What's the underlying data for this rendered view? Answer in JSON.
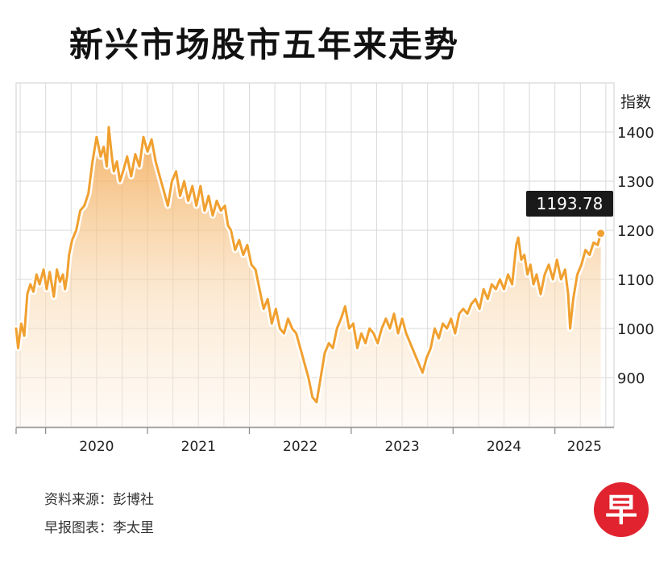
{
  "title": "新兴市场股市五年来走势",
  "chart_data": {
    "type": "line",
    "title": "新兴市场股市五年来走势",
    "ylabel": "指数",
    "xlabel": "",
    "ylim": [
      800,
      1500
    ],
    "yticks": [
      900,
      1000,
      1100,
      1200,
      1300,
      1400
    ],
    "xticks": [
      "2020",
      "2021",
      "2022",
      "2023",
      "2024",
      "2025"
    ],
    "x_range": [
      2019.71,
      2025.58
    ],
    "grid": true,
    "callout": "1193.78",
    "last_value": 1193.78,
    "series": [
      {
        "color": "#f0a030",
        "points": [
          [
            2019.71,
            1000
          ],
          [
            2019.73,
            960
          ],
          [
            2019.76,
            1010
          ],
          [
            2019.79,
            985
          ],
          [
            2019.82,
            1070
          ],
          [
            2019.85,
            1090
          ],
          [
            2019.88,
            1075
          ],
          [
            2019.91,
            1110
          ],
          [
            2019.94,
            1090
          ],
          [
            2019.98,
            1120
          ],
          [
            2020.01,
            1080
          ],
          [
            2020.04,
            1115
          ],
          [
            2020.08,
            1065
          ],
          [
            2020.11,
            1120
          ],
          [
            2020.14,
            1095
          ],
          [
            2020.17,
            1110
          ],
          [
            2020.19,
            1080
          ],
          [
            2020.21,
            1105
          ],
          [
            2020.23,
            1150
          ],
          [
            2020.26,
            1180
          ],
          [
            2020.3,
            1200
          ],
          [
            2020.34,
            1240
          ],
          [
            2020.38,
            1250
          ],
          [
            2020.42,
            1275
          ],
          [
            2020.46,
            1340
          ],
          [
            2020.5,
            1390
          ],
          [
            2020.54,
            1350
          ],
          [
            2020.57,
            1370
          ],
          [
            2020.6,
            1330
          ],
          [
            2020.62,
            1410
          ],
          [
            2020.65,
            1350
          ],
          [
            2020.67,
            1320
          ],
          [
            2020.7,
            1340
          ],
          [
            2020.73,
            1300
          ],
          [
            2020.76,
            1320
          ],
          [
            2020.8,
            1350
          ],
          [
            2020.84,
            1310
          ],
          [
            2020.88,
            1355
          ],
          [
            2020.92,
            1330
          ],
          [
            2020.96,
            1390
          ],
          [
            2021.0,
            1360
          ],
          [
            2021.04,
            1385
          ],
          [
            2021.08,
            1340
          ],
          [
            2021.12,
            1310
          ],
          [
            2021.16,
            1280
          ],
          [
            2021.2,
            1250
          ],
          [
            2021.24,
            1300
          ],
          [
            2021.28,
            1320
          ],
          [
            2021.32,
            1270
          ],
          [
            2021.36,
            1300
          ],
          [
            2021.4,
            1260
          ],
          [
            2021.44,
            1290
          ],
          [
            2021.48,
            1250
          ],
          [
            2021.52,
            1290
          ],
          [
            2021.56,
            1240
          ],
          [
            2021.6,
            1270
          ],
          [
            2021.64,
            1230
          ],
          [
            2021.68,
            1260
          ],
          [
            2021.72,
            1240
          ],
          [
            2021.76,
            1250
          ],
          [
            2021.79,
            1210
          ],
          [
            2021.82,
            1200
          ],
          [
            2021.86,
            1160
          ],
          [
            2021.9,
            1180
          ],
          [
            2021.94,
            1150
          ],
          [
            2021.98,
            1170
          ],
          [
            2022.02,
            1130
          ],
          [
            2022.06,
            1120
          ],
          [
            2022.1,
            1080
          ],
          [
            2022.14,
            1040
          ],
          [
            2022.18,
            1060
          ],
          [
            2022.22,
            1010
          ],
          [
            2022.26,
            1040
          ],
          [
            2022.3,
            1000
          ],
          [
            2022.34,
            990
          ],
          [
            2022.38,
            1020
          ],
          [
            2022.42,
            1000
          ],
          [
            2022.46,
            990
          ],
          [
            2022.5,
            960
          ],
          [
            2022.54,
            930
          ],
          [
            2022.58,
            900
          ],
          [
            2022.62,
            860
          ],
          [
            2022.66,
            850
          ],
          [
            2022.7,
            900
          ],
          [
            2022.74,
            950
          ],
          [
            2022.78,
            970
          ],
          [
            2022.82,
            960
          ],
          [
            2022.86,
            1000
          ],
          [
            2022.9,
            1020
          ],
          [
            2022.94,
            1045
          ],
          [
            2022.98,
            1000
          ],
          [
            2023.02,
            1010
          ],
          [
            2023.06,
            960
          ],
          [
            2023.1,
            990
          ],
          [
            2023.14,
            970
          ],
          [
            2023.18,
            1000
          ],
          [
            2023.22,
            990
          ],
          [
            2023.26,
            970
          ],
          [
            2023.3,
            1000
          ],
          [
            2023.34,
            1020
          ],
          [
            2023.38,
            1000
          ],
          [
            2023.42,
            1030
          ],
          [
            2023.46,
            990
          ],
          [
            2023.5,
            1020
          ],
          [
            2023.54,
            990
          ],
          [
            2023.58,
            970
          ],
          [
            2023.62,
            950
          ],
          [
            2023.66,
            930
          ],
          [
            2023.7,
            910
          ],
          [
            2023.74,
            940
          ],
          [
            2023.78,
            960
          ],
          [
            2023.82,
            1000
          ],
          [
            2023.86,
            980
          ],
          [
            2023.9,
            1010
          ],
          [
            2023.94,
            1000
          ],
          [
            2023.98,
            1020
          ],
          [
            2024.02,
            990
          ],
          [
            2024.06,
            1030
          ],
          [
            2024.1,
            1040
          ],
          [
            2024.14,
            1030
          ],
          [
            2024.18,
            1050
          ],
          [
            2024.22,
            1060
          ],
          [
            2024.26,
            1040
          ],
          [
            2024.3,
            1080
          ],
          [
            2024.34,
            1060
          ],
          [
            2024.38,
            1090
          ],
          [
            2024.42,
            1080
          ],
          [
            2024.46,
            1100
          ],
          [
            2024.5,
            1080
          ],
          [
            2024.54,
            1110
          ],
          [
            2024.58,
            1090
          ],
          [
            2024.62,
            1170
          ],
          [
            2024.64,
            1185
          ],
          [
            2024.67,
            1140
          ],
          [
            2024.7,
            1150
          ],
          [
            2024.73,
            1110
          ],
          [
            2024.76,
            1130
          ],
          [
            2024.79,
            1090
          ],
          [
            2024.82,
            1110
          ],
          [
            2024.86,
            1070
          ],
          [
            2024.9,
            1110
          ],
          [
            2024.94,
            1130
          ],
          [
            2024.98,
            1100
          ],
          [
            2025.02,
            1140
          ],
          [
            2025.06,
            1100
          ],
          [
            2025.1,
            1120
          ],
          [
            2025.13,
            1070
          ],
          [
            2025.15,
            1000
          ],
          [
            2025.18,
            1060
          ],
          [
            2025.22,
            1110
          ],
          [
            2025.26,
            1130
          ],
          [
            2025.3,
            1160
          ],
          [
            2025.34,
            1150
          ],
          [
            2025.38,
            1175
          ],
          [
            2025.42,
            1170
          ],
          [
            2025.45,
            1193.78
          ]
        ]
      }
    ]
  },
  "footer": {
    "source": "资料来源：彭博社",
    "credit": "早报图表：李太里"
  },
  "logo": {
    "char": "早",
    "color": "#e0232e"
  }
}
